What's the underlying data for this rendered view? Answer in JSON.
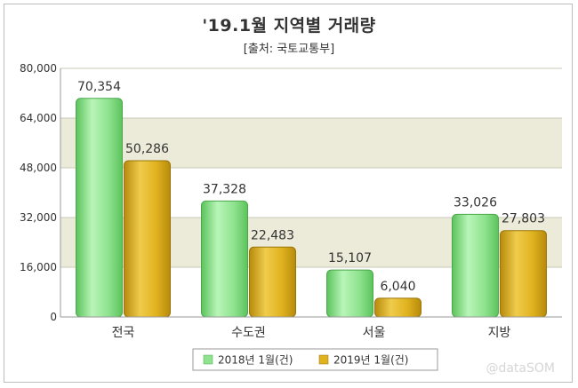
{
  "title": "'19.1월 지역별 거래량",
  "subtitle": "[출처: 국토교통부]",
  "watermark": "@dataSOM",
  "chart_data": {
    "type": "bar",
    "categories": [
      "전국",
      "수도권",
      "서울",
      "지방"
    ],
    "series": [
      {
        "name": "2018년 1월(건)",
        "values": [
          70354,
          37328,
          15107,
          33026
        ],
        "color": "#8fe38f"
      },
      {
        "name": "2019년 1월(건)",
        "values": [
          50286,
          22483,
          6040,
          27803
        ],
        "color": "#e0b21e"
      }
    ],
    "data_labels": [
      [
        "70,354",
        "37,328",
        "15,107",
        "33,026"
      ],
      [
        "50,286",
        "22,483",
        "6,040",
        "27,803"
      ]
    ],
    "ylim": [
      0,
      80000
    ],
    "yticks": [
      0,
      16000,
      32000,
      48000,
      64000,
      80000
    ],
    "ytick_labels": [
      "0",
      "16,000",
      "32,000",
      "48,000",
      "64,000",
      "80,000"
    ],
    "grid": true,
    "legend_position": "bottom"
  }
}
